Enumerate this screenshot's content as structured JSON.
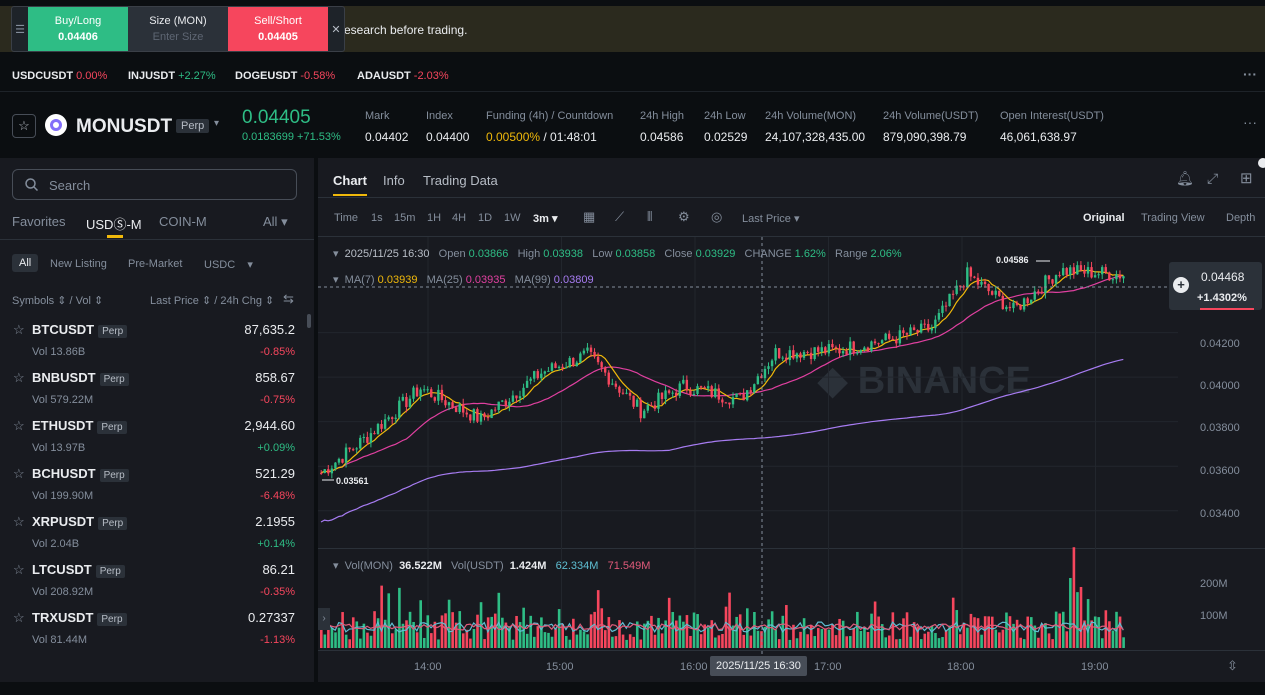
{
  "banner": {
    "text": "research before trading."
  },
  "quick": {
    "buy_label": "Buy/Long",
    "buy_price": "0.04406",
    "size_label": "Size (MON)",
    "size_placeholder": "Enter Size",
    "sell_label": "Sell/Short",
    "sell_price": "0.04405"
  },
  "tickers": [
    {
      "sym": "USDCUSDT",
      "chg": "0.00%"
    },
    {
      "sym": "INJUSDT",
      "chg": "+2.27%"
    },
    {
      "sym": "DOGEUSDT",
      "chg": "-0.58%"
    },
    {
      "sym": "ADAUSDT",
      "chg": "-2.03%"
    }
  ],
  "header": {
    "symbol": "MONUSDT",
    "perp": "Perp",
    "last_price": "0.04405",
    "change": "0.0183699 +71.53%",
    "mark_label": "Mark",
    "mark": "0.04402",
    "index_label": "Index",
    "index": "0.04400",
    "funding_label": "Funding (4h) / Countdown",
    "funding_rate": "0.00500%",
    "countdown": "/ 01:48:01",
    "high_label": "24h High",
    "high": "0.04586",
    "low_label": "24h Low",
    "low": "0.02529",
    "volmon_label": "24h Volume(MON)",
    "volmon": "24,107,328,435.00",
    "volusdt_label": "24h Volume(USDT)",
    "volusdt": "879,090,398.79",
    "oi_label": "Open Interest(USDT)",
    "oi": "46,061,638.97"
  },
  "left": {
    "search_placeholder": "Search",
    "tabs": [
      "Favorites",
      "USDⓈ-M",
      "COIN-M",
      "All"
    ],
    "subtabs": [
      "All",
      "New Listing",
      "Pre-Market",
      "USDC"
    ],
    "col_symbols": "Symbols",
    "col_vol": "/ Vol",
    "col_last": "Last Price",
    "col_chg": "/ 24h Chg",
    "rows": [
      {
        "sym": "BTCUSDT",
        "vol": "Vol 13.86B",
        "price": "87,635.2",
        "chg": "-0.85%",
        "dir": "down"
      },
      {
        "sym": "BNBUSDT",
        "vol": "Vol 579.22M",
        "price": "858.67",
        "chg": "-0.75%",
        "dir": "down"
      },
      {
        "sym": "ETHUSDT",
        "vol": "Vol 13.97B",
        "price": "2,944.60",
        "chg": "+0.09%",
        "dir": "up"
      },
      {
        "sym": "BCHUSDT",
        "vol": "Vol 199.90M",
        "price": "521.29",
        "chg": "-6.48%",
        "dir": "down"
      },
      {
        "sym": "XRPUSDT",
        "vol": "Vol 2.04B",
        "price": "2.1955",
        "chg": "+0.14%",
        "dir": "up"
      },
      {
        "sym": "LTCUSDT",
        "vol": "Vol 208.92M",
        "price": "86.21",
        "chg": "-0.35%",
        "dir": "down"
      },
      {
        "sym": "TRXUSDT",
        "vol": "Vol 81.44M",
        "price": "0.27337",
        "chg": "-1.13%",
        "dir": "down"
      }
    ],
    "perp": "Perp"
  },
  "chart": {
    "tabs": [
      "Chart",
      "Info",
      "Trading Data"
    ],
    "intervals": [
      "Time",
      "1s",
      "15m",
      "1H",
      "4H",
      "1D",
      "1W",
      "3m"
    ],
    "price_type": "Last Price",
    "views": [
      "Original",
      "Trading View",
      "Depth"
    ],
    "ohlc": {
      "date": "2025/11/25 16:30",
      "open_label": "Open",
      "open": "0.03866",
      "high_label": "High",
      "high": "0.03938",
      "low_label": "Low",
      "low": "0.03858",
      "close_label": "Close",
      "close": "0.03929",
      "change_label": "CHANGE",
      "change": "1.62%",
      "range_label": "Range",
      "range": "2.06%"
    },
    "ma": {
      "ma7_label": "MA(7)",
      "ma7": "0.03939",
      "ma25_label": "MA(25)",
      "ma25": "0.03935",
      "ma99_label": "MA(99)",
      "ma99": "0.03809"
    },
    "vol": {
      "label": "Vol(MON)",
      "mon": "36.522M",
      "usdt_label": "Vol(USDT)",
      "usdt": "1.424M",
      "v1": "62.334M",
      "v2": "71.549M"
    },
    "price_axis": [
      "0.04200",
      "0.04000",
      "0.03800",
      "0.03600",
      "0.03400"
    ],
    "vol_axis": [
      "200M",
      "100M"
    ],
    "time_axis": [
      "14:00",
      "15:00",
      "16:00",
      "17:00",
      "18:00",
      "19:00"
    ],
    "crosshair_time": "2025/11/25 16:30",
    "current_price": "0.04468",
    "current_change": "+1.4302%",
    "hi_marker": "0.04586",
    "lo_marker": "0.03561"
  },
  "chart_data": {
    "type": "candlestick",
    "ylim": [
      0.033,
      0.0458
    ],
    "price_ticks": [
      0.034,
      0.036,
      0.038,
      0.04,
      0.042
    ],
    "time_ticks": [
      "14:00",
      "15:00",
      "16:00",
      "17:00",
      "18:00",
      "19:00"
    ],
    "interval": "3m",
    "high_marker": 0.04586,
    "low_marker": 0.03561
  }
}
